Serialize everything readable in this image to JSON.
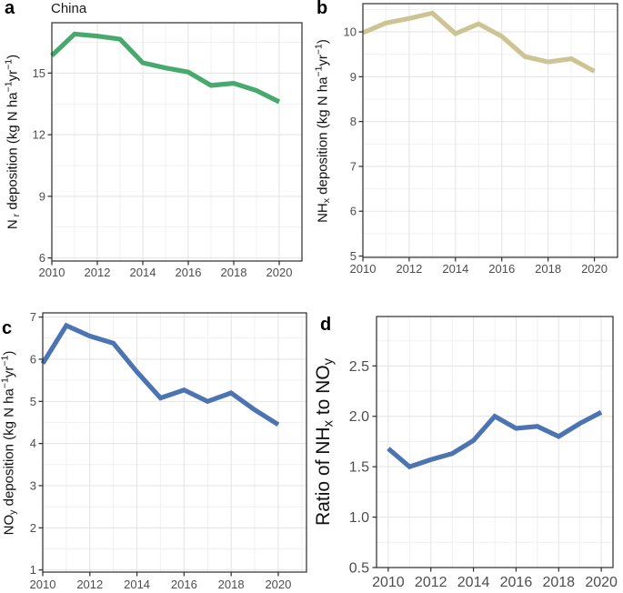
{
  "figure": {
    "region_label": "China"
  },
  "chart_data": [
    {
      "id": "a",
      "type": "line",
      "panel_label": "a",
      "title": "China",
      "ylabel": "Nr deposition (kg N ha−1yr−1)",
      "ylabel_parts": [
        {
          "text": "N"
        },
        {
          "text": " r",
          "style": "sub"
        },
        {
          "text": " deposition (kg N ha"
        },
        {
          "text": "−1",
          "style": "sup"
        },
        {
          "text": "yr"
        },
        {
          "text": "−1",
          "style": "sup"
        },
        {
          "text": ")"
        }
      ],
      "xlabel": "",
      "line_color": "#48A96F",
      "x": [
        2010,
        2011,
        2012,
        2013,
        2014,
        2015,
        2016,
        2017,
        2018,
        2019,
        2020
      ],
      "values": [
        15.85,
        16.9,
        16.8,
        16.65,
        15.5,
        15.25,
        15.05,
        14.4,
        14.5,
        14.15,
        13.6
      ],
      "xlim": [
        2010,
        2021
      ],
      "ylim": [
        5.85,
        17.45
      ],
      "xticks": [
        2010,
        2012,
        2014,
        2016,
        2018,
        2020
      ],
      "xtick_labels": [
        "2010",
        "2012",
        "2014",
        "2016",
        "2018",
        "2020"
      ],
      "xticks_minor": [
        2011,
        2013,
        2015,
        2017,
        2019,
        2021
      ],
      "yticks": [
        6,
        9,
        12,
        15
      ],
      "ytick_labels": [
        "6",
        "9",
        "12",
        "15"
      ],
      "yticks_minor": [
        7.5,
        10.5,
        13.5,
        16.5
      ],
      "grid": true
    },
    {
      "id": "b",
      "type": "line",
      "panel_label": "b",
      "title": "",
      "ylabel": "NHx deposition (kg N ha−1yr−1)",
      "ylabel_parts": [
        {
          "text": "NH"
        },
        {
          "text": "x",
          "style": "sub"
        },
        {
          "text": " deposition (kg N ha"
        },
        {
          "text": "−1",
          "style": "sup"
        },
        {
          "text": "yr"
        },
        {
          "text": "−1",
          "style": "sup"
        },
        {
          "text": ")"
        }
      ],
      "xlabel": "",
      "line_color": "#CCC593",
      "x": [
        2010,
        2011,
        2012,
        2013,
        2014,
        2015,
        2016,
        2017,
        2018,
        2019,
        2020
      ],
      "values": [
        9.98,
        10.2,
        10.3,
        10.42,
        9.96,
        10.18,
        9.9,
        9.45,
        9.33,
        9.4,
        9.12
      ],
      "xlim": [
        2010,
        2021
      ],
      "ylim": [
        4.97,
        10.63
      ],
      "xticks": [
        2010,
        2012,
        2014,
        2016,
        2018,
        2020
      ],
      "xtick_labels": [
        "2010",
        "2012",
        "2014",
        "2016",
        "2018",
        "2020"
      ],
      "xticks_minor": [
        2011,
        2013,
        2015,
        2017,
        2019,
        2021
      ],
      "yticks": [
        5,
        6,
        7,
        8,
        9,
        10
      ],
      "ytick_labels": [
        "5",
        "6",
        "7",
        "8",
        "9",
        "10"
      ],
      "yticks_minor": [
        5.5,
        6.5,
        7.5,
        8.5,
        9.5,
        10.5
      ],
      "grid": true
    },
    {
      "id": "c",
      "type": "line",
      "panel_label": "c",
      "title": "",
      "ylabel": "NOy deposition (kg N ha−1yr−1)",
      "ylabel_parts": [
        {
          "text": "NO"
        },
        {
          "text": "y",
          "style": "sub"
        },
        {
          "text": " deposition (kg N ha"
        },
        {
          "text": "−1",
          "style": "sup"
        },
        {
          "text": "yr"
        },
        {
          "text": "−1",
          "style": "sup"
        },
        {
          "text": ")"
        }
      ],
      "xlabel": "",
      "line_color": "#4C74B3",
      "x": [
        2010,
        2011,
        2012,
        2013,
        2014,
        2015,
        2016,
        2017,
        2018,
        2019,
        2020
      ],
      "values": [
        5.9,
        6.8,
        6.55,
        6.38,
        5.7,
        5.08,
        5.27,
        5.0,
        5.2,
        4.8,
        4.45
      ],
      "xlim": [
        2010,
        2021.2
      ],
      "ylim": [
        0.95,
        7.1
      ],
      "xticks": [
        2010,
        2012,
        2014,
        2016,
        2018,
        2020
      ],
      "xtick_labels": [
        "2010",
        "2012",
        "2014",
        "2016",
        "2018",
        "2020"
      ],
      "xticks_minor": [
        2011,
        2013,
        2015,
        2017,
        2019,
        2021
      ],
      "yticks": [
        1,
        2,
        3,
        4,
        5,
        6,
        7
      ],
      "ytick_labels": [
        "1",
        "2",
        "3",
        "4",
        "5",
        "6",
        "7"
      ],
      "yticks_minor": [
        1.5,
        2.5,
        3.5,
        4.5,
        5.5,
        6.5
      ],
      "grid": true
    },
    {
      "id": "d",
      "type": "line",
      "panel_label": "d",
      "title": "",
      "ylabel": "Ratio of NHx to NOy",
      "ylabel_parts": [
        {
          "text": "Ratio of NH"
        },
        {
          "text": "x",
          "style": "sub"
        },
        {
          "text": " to NO"
        },
        {
          "text": "y",
          "style": "sub"
        }
      ],
      "xlabel": "",
      "line_color": "#4C74B3",
      "x": [
        2010,
        2011,
        2012,
        2013,
        2014,
        2015,
        2016,
        2017,
        2018,
        2019,
        2020
      ],
      "values": [
        1.68,
        1.5,
        1.57,
        1.63,
        1.76,
        2.0,
        1.88,
        1.9,
        1.8,
        1.93,
        2.04
      ],
      "xlim": [
        2009.45,
        2020.55
      ],
      "ylim": [
        0.5,
        2.99
      ],
      "xticks": [
        2010,
        2012,
        2014,
        2016,
        2018,
        2020
      ],
      "xtick_labels": [
        "2010",
        "2012",
        "2014",
        "2016",
        "2018",
        "2020"
      ],
      "xticks_minor": [
        2011,
        2013,
        2015,
        2017,
        2019
      ],
      "yticks": [
        0.5,
        1.0,
        1.5,
        2.0,
        2.5
      ],
      "ytick_labels": [
        "0.5",
        "1.0",
        "1.5",
        "2.0",
        "2.5"
      ],
      "yticks_minor": [
        0.75,
        1.25,
        1.75,
        2.25,
        2.75
      ],
      "grid": true
    }
  ]
}
